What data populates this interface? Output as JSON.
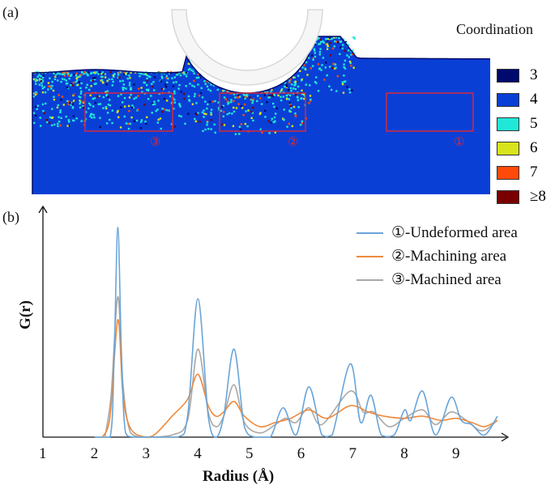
{
  "panel_a": {
    "label": "(a)",
    "legend_title": "Coordination",
    "legend": [
      {
        "label": "3",
        "color": "#000a6e"
      },
      {
        "label": "4",
        "color": "#0a3fd6"
      },
      {
        "label": "5",
        "color": "#20e8d8"
      },
      {
        "label": "6",
        "color": "#d8e41a"
      },
      {
        "label": "7",
        "color": "#ff4a0a"
      },
      {
        "label": "≥8",
        "color": "#7a0000"
      }
    ],
    "regions": [
      {
        "label": "③"
      },
      {
        "label": "②"
      },
      {
        "label": "①"
      }
    ],
    "box_color": "#d42a3a"
  },
  "panel_b": {
    "label": "(b)"
  },
  "chart_data": {
    "type": "line",
    "xlabel": "Radius (Å)",
    "ylabel": "G(r)",
    "xlim": [
      1,
      10.2
    ],
    "ylim": [
      0,
      1.1
    ],
    "xticks": [
      "1",
      "2",
      "3",
      "4",
      "5",
      "6",
      "7",
      "8",
      "9"
    ],
    "grid": false,
    "legend_position": "top-right",
    "series": [
      {
        "name": "①-Undeformed area",
        "color": "#6aa5d8",
        "points": [
          [
            2.0,
            0
          ],
          [
            2.3,
            0
          ],
          [
            2.38,
            0.4
          ],
          [
            2.45,
            1.0
          ],
          [
            2.52,
            0.4
          ],
          [
            2.6,
            0.02
          ],
          [
            2.8,
            0
          ],
          [
            3.6,
            0
          ],
          [
            3.8,
            0.1
          ],
          [
            4.0,
            0.66
          ],
          [
            4.2,
            0.1
          ],
          [
            4.35,
            0
          ],
          [
            4.5,
            0.1
          ],
          [
            4.7,
            0.42
          ],
          [
            4.9,
            0.05
          ],
          [
            5.1,
            0
          ],
          [
            5.4,
            0
          ],
          [
            5.65,
            0.14
          ],
          [
            5.9,
            0.01
          ],
          [
            6.15,
            0.24
          ],
          [
            6.4,
            0.01
          ],
          [
            6.6,
            0.01
          ],
          [
            6.95,
            0.35
          ],
          [
            7.15,
            0.07
          ],
          [
            7.35,
            0.2
          ],
          [
            7.55,
            0.01
          ],
          [
            7.8,
            0.01
          ],
          [
            8.0,
            0.13
          ],
          [
            8.12,
            0.08
          ],
          [
            8.35,
            0.22
          ],
          [
            8.6,
            0.01
          ],
          [
            8.9,
            0.19
          ],
          [
            9.1,
            0.08
          ],
          [
            9.3,
            0.06
          ],
          [
            9.55,
            0.01
          ],
          [
            9.8,
            0.1
          ]
        ]
      },
      {
        "name": "②-Machining area",
        "color": "#ee8a3e",
        "points": [
          [
            2.15,
            0
          ],
          [
            2.3,
            0.1
          ],
          [
            2.45,
            0.56
          ],
          [
            2.55,
            0.2
          ],
          [
            2.7,
            0.04
          ],
          [
            3.0,
            0
          ],
          [
            3.2,
            0.02
          ],
          [
            3.5,
            0.1
          ],
          [
            3.8,
            0.18
          ],
          [
            4.0,
            0.3
          ],
          [
            4.2,
            0.15
          ],
          [
            4.35,
            0.1
          ],
          [
            4.5,
            0.12
          ],
          [
            4.7,
            0.17
          ],
          [
            4.9,
            0.1
          ],
          [
            5.2,
            0.05
          ],
          [
            5.5,
            0.07
          ],
          [
            5.8,
            0.09
          ],
          [
            6.15,
            0.13
          ],
          [
            6.5,
            0.09
          ],
          [
            6.95,
            0.15
          ],
          [
            7.3,
            0.12
          ],
          [
            7.6,
            0.1
          ],
          [
            8.0,
            0.09
          ],
          [
            8.35,
            0.1
          ],
          [
            8.7,
            0.08
          ],
          [
            9.0,
            0.09
          ],
          [
            9.3,
            0.07
          ],
          [
            9.55,
            0.05
          ],
          [
            9.8,
            0.08
          ]
        ]
      },
      {
        "name": "③-Machined area",
        "color": "#a8a8a8",
        "points": [
          [
            2.2,
            0
          ],
          [
            2.32,
            0.2
          ],
          [
            2.45,
            0.67
          ],
          [
            2.55,
            0.25
          ],
          [
            2.7,
            0.02
          ],
          [
            3.0,
            0
          ],
          [
            3.5,
            0.01
          ],
          [
            3.8,
            0.08
          ],
          [
            4.0,
            0.42
          ],
          [
            4.2,
            0.12
          ],
          [
            4.35,
            0.05
          ],
          [
            4.5,
            0.1
          ],
          [
            4.7,
            0.25
          ],
          [
            4.9,
            0.07
          ],
          [
            5.2,
            0.02
          ],
          [
            5.5,
            0.06
          ],
          [
            5.7,
            0.09
          ],
          [
            5.9,
            0.07
          ],
          [
            6.15,
            0.14
          ],
          [
            6.4,
            0.06
          ],
          [
            6.95,
            0.22
          ],
          [
            7.2,
            0.12
          ],
          [
            7.4,
            0.12
          ],
          [
            7.7,
            0.05
          ],
          [
            8.0,
            0.09
          ],
          [
            8.35,
            0.13
          ],
          [
            8.6,
            0.06
          ],
          [
            8.9,
            0.12
          ],
          [
            9.2,
            0.08
          ],
          [
            9.5,
            0.03
          ],
          [
            9.8,
            0.08
          ]
        ]
      }
    ]
  }
}
